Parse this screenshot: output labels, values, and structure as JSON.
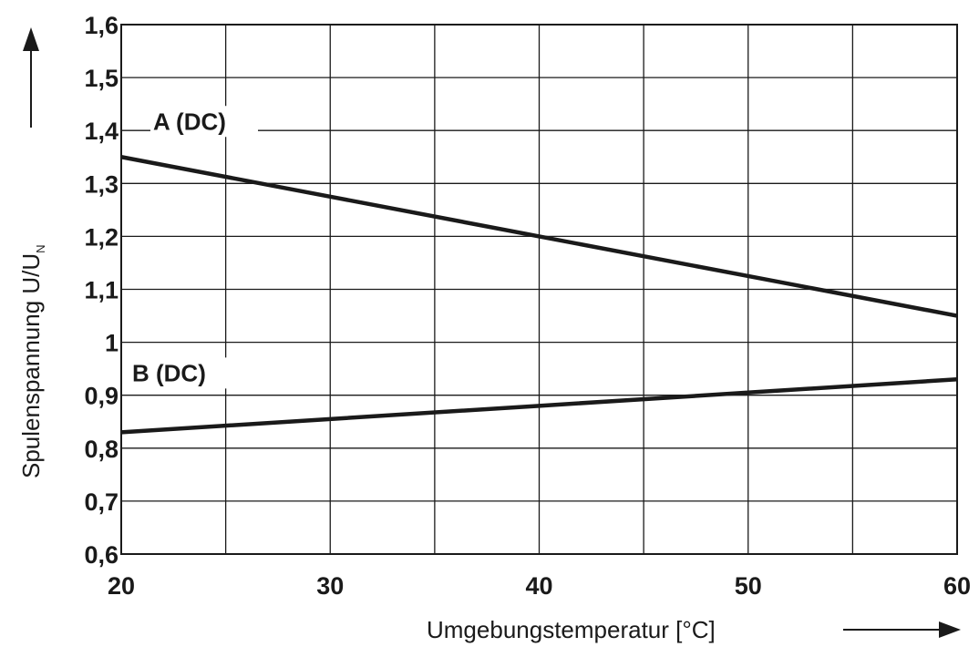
{
  "chart_data": {
    "type": "line",
    "xlabel": "Umgebungstemperatur [°C]",
    "ylabel": "Spulenspannung U/U",
    "ylabel_subscript": "N",
    "xlim": [
      20,
      60
    ],
    "ylim": [
      0.6,
      1.6
    ],
    "x_ticks": [
      20,
      30,
      40,
      50,
      60
    ],
    "x_tick_labels": [
      "20",
      "30",
      "40",
      "50",
      "60"
    ],
    "y_ticks": [
      0.6,
      0.7,
      0.8,
      0.9,
      1.0,
      1.1,
      1.2,
      1.3,
      1.4,
      1.5,
      1.6
    ],
    "y_tick_labels": [
      "0,6",
      "0,7",
      "0,8",
      "0,9",
      "1",
      "1,1",
      "1,2",
      "1,3",
      "1,4",
      "1,5",
      "1,6"
    ],
    "x_gridlines": [
      20,
      25,
      30,
      35,
      40,
      45,
      50,
      55,
      60
    ],
    "y_gridlines": [
      0.6,
      0.7,
      0.8,
      0.9,
      1.0,
      1.1,
      1.2,
      1.3,
      1.4,
      1.5,
      1.6
    ],
    "grid": true,
    "series": [
      {
        "name": "A (DC)",
        "color": "#1a1a1a",
        "x": [
          20,
          30,
          40,
          50,
          60
        ],
        "y": [
          1.35,
          1.275,
          1.2,
          1.125,
          1.05
        ]
      },
      {
        "name": "B (DC)",
        "color": "#1a1a1a",
        "x": [
          20,
          30,
          40,
          50,
          60
        ],
        "y": [
          0.83,
          0.855,
          0.88,
          0.905,
          0.93
        ]
      }
    ]
  }
}
